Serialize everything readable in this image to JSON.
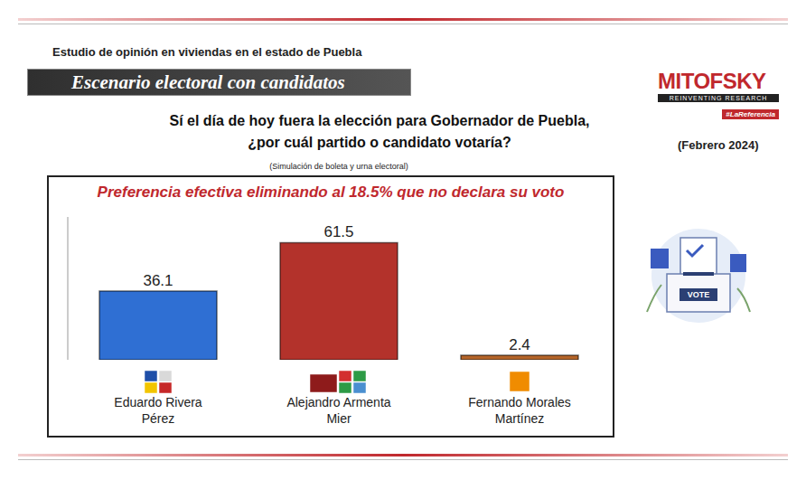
{
  "header": {
    "study": "Estudio de opinión en viviendas en el estado de Puebla",
    "banner": "Escenario electoral con candidatos",
    "question": [
      "Sí el día de hoy fuera la elección para Gobernador de Puebla,",
      "¿por cuál partido o candidato votaría?"
    ],
    "note": "(Simulación de boleta y urna electoral)",
    "date": "(Febrero 2024)",
    "logo": {
      "name": "MITOFSKY",
      "tagline": "REINVENTING RESEARCH",
      "hashtag": "#LaReferencia"
    },
    "illustration_text": "VOTE"
  },
  "chart_data": {
    "type": "bar",
    "title": "Preferencia efectiva eliminando al 18.5% que no declara su voto",
    "categories": [
      "Eduardo Rivera Pérez",
      "Alejandro Armenta Mier",
      "Fernando Morales Martínez"
    ],
    "values": [
      36.1,
      61.5,
      2.4
    ],
    "colors": [
      "#2f6fd3",
      "#b3322b",
      "#b5652a"
    ],
    "ylim": [
      0,
      75
    ],
    "tick_labels": "x",
    "data_labels": true,
    "grid": false
  }
}
